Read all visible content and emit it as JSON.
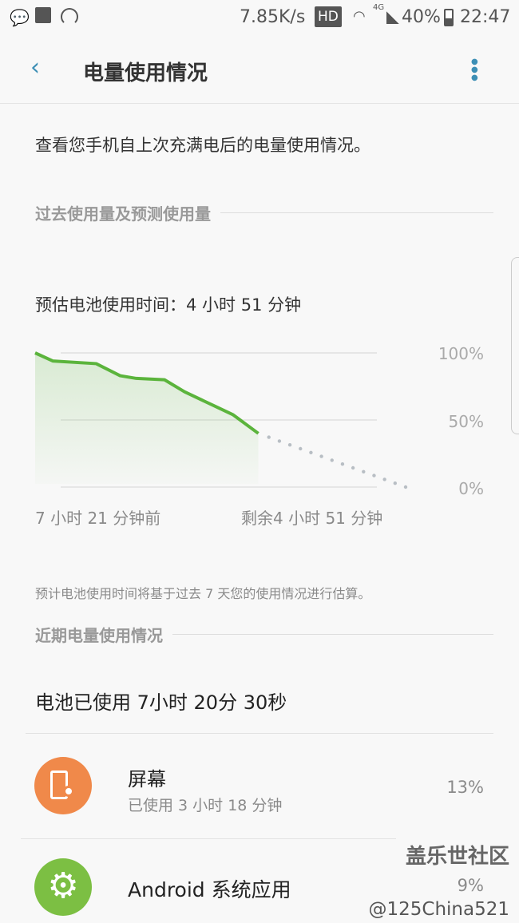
{
  "status_bar": {
    "net_speed": "7.85K/s",
    "hd": "HD",
    "network": "4G",
    "battery": "40%",
    "time": "22:47"
  },
  "app_bar": {
    "title": "电量使用情况"
  },
  "description": "查看您手机自上次充满电后的电量使用情况。",
  "section1": {
    "title": "过去使用量及预测使用量"
  },
  "estimate": "预估电池使用时间：4 小时 51 分钟",
  "chart_data": {
    "type": "line",
    "x_unit": "hours relative to now",
    "history": {
      "x": [
        -7.35,
        -6.77,
        -5.34,
        -4.55,
        -4.02,
        -3.09,
        -2.43,
        -0.84,
        0
      ],
      "y": [
        100,
        94,
        92,
        83,
        81,
        80,
        71,
        54,
        40
      ]
    },
    "projection": {
      "x": [
        0,
        4.85
      ],
      "y": [
        40,
        0
      ],
      "style": "dotted"
    },
    "yticks": [
      "100%",
      "50%",
      "0%"
    ],
    "ylim": [
      0,
      100
    ],
    "xlabels": {
      "start": "7 小时 21 分钟前",
      "end": "剩余4 小时 51 分钟"
    },
    "colors": {
      "line": "#5bb43c",
      "projection": "#b8bec4"
    }
  },
  "note": "预计电池使用时间将基于过去 7 天您的使用情况进行估算。",
  "section2": {
    "title": "近期电量使用情况"
  },
  "used": "电池已使用 7小时 20分 30秒",
  "items": [
    {
      "name": "屏幕",
      "sub": "已使用 3 小时 18 分钟",
      "pct": "13%",
      "icon": "screen-brightness-icon",
      "color": "#f0894a"
    },
    {
      "name": "Android 系统应用",
      "pct": "9%",
      "icon": "gear-icon",
      "color": "#7cbf43"
    }
  ],
  "watermark": {
    "line1": "盖乐世社区",
    "line2": "@125China521"
  }
}
